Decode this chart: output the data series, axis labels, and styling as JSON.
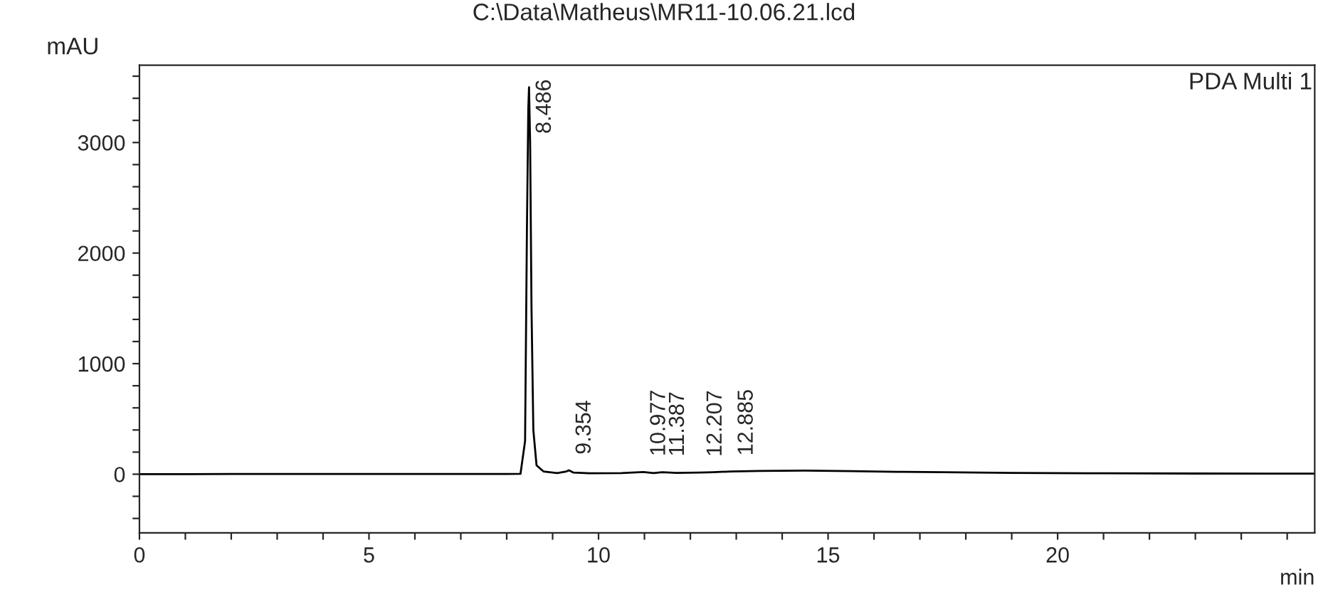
{
  "chart_data": {
    "type": "line",
    "title": "C:\\Data\\Matheus\\MR11-10.06.21.lcd",
    "xlabel": "min",
    "ylabel": "mAU",
    "series": [
      {
        "color": "#000000",
        "x": [
          0,
          1,
          2,
          3,
          4,
          5,
          6,
          7,
          8,
          8.3,
          8.4,
          8.44,
          8.47,
          8.486,
          8.51,
          8.54,
          8.58,
          8.65,
          8.8,
          9.1,
          9.3,
          9.354,
          9.45,
          9.8,
          10.5,
          10.977,
          11.2,
          11.387,
          11.7,
          12.207,
          12.5,
          12.885,
          13.5,
          14.5,
          15.5,
          16.5,
          17.5,
          19,
          21,
          23,
          25.6
        ],
        "values": [
          0,
          0,
          2,
          2,
          2,
          2,
          2,
          2,
          2,
          3,
          300,
          2200,
          3300,
          3500,
          3000,
          1500,
          400,
          80,
          25,
          10,
          25,
          35,
          15,
          8,
          10,
          20,
          10,
          18,
          12,
          15,
          18,
          25,
          30,
          32,
          28,
          22,
          18,
          12,
          8,
          6,
          5
        ]
      }
    ],
    "annotations": [
      {
        "text": "8.486",
        "x": 8.486,
        "y": 3500
      },
      {
        "text": "9.354",
        "x": 9.354,
        "y": 35
      },
      {
        "text": "10.977",
        "x": 10.977,
        "y": 20
      },
      {
        "text": "11.387",
        "x": 11.387,
        "y": 18
      },
      {
        "text": "12.207",
        "x": 12.207,
        "y": 15
      },
      {
        "text": "12.885",
        "x": 12.885,
        "y": 25
      },
      "PDA Multi 1"
    ],
    "xlim": [
      0,
      25.6
    ],
    "ylim": [
      -530,
      3700
    ],
    "xticks": [
      0,
      {
        "value": 1,
        "label": null
      },
      {
        "value": 2,
        "label": null
      },
      {
        "value": 3,
        "label": null
      },
      {
        "value": 4,
        "label": null
      },
      5,
      {
        "value": 6,
        "label": null
      },
      {
        "value": 7,
        "label": null
      },
      {
        "value": 8,
        "label": null
      },
      {
        "value": 9,
        "label": null
      },
      10,
      {
        "value": 11,
        "label": null
      },
      {
        "value": 12,
        "label": null
      },
      {
        "value": 13,
        "label": null
      },
      {
        "value": 14,
        "label": null
      },
      15,
      {
        "value": 16,
        "label": null
      },
      {
        "value": 17,
        "label": null
      },
      {
        "value": 18,
        "label": null
      },
      {
        "value": 19,
        "label": null
      },
      20,
      {
        "value": 21,
        "label": null
      },
      {
        "value": 22,
        "label": null
      },
      {
        "value": 23,
        "label": null
      },
      {
        "value": 24,
        "label": null
      },
      {
        "value": 25,
        "label": null
      }
    ],
    "yticks": [
      {
        "value": -400,
        "label": null
      },
      {
        "value": -200,
        "label": null
      },
      0,
      {
        "value": 200,
        "label": null
      },
      {
        "value": 400,
        "label": null
      },
      {
        "value": 600,
        "label": null
      },
      {
        "value": 800,
        "label": null
      },
      1000,
      {
        "value": 1200,
        "label": null
      },
      {
        "value": 1400,
        "label": null
      },
      {
        "value": 1600,
        "label": null
      },
      {
        "value": 1800,
        "label": null
      },
      2000,
      {
        "value": 2200,
        "label": null
      },
      {
        "value": 2400,
        "label": null
      },
      {
        "value": 2600,
        "label": null
      },
      {
        "value": 2800,
        "label": null
      },
      3000,
      {
        "value": 3200,
        "label": null
      },
      {
        "value": 3400,
        "label": null
      },
      {
        "value": 3600,
        "label": null
      }
    ],
    "grid": false,
    "legend": false,
    "marker": "none",
    "line_style": "solid"
  }
}
